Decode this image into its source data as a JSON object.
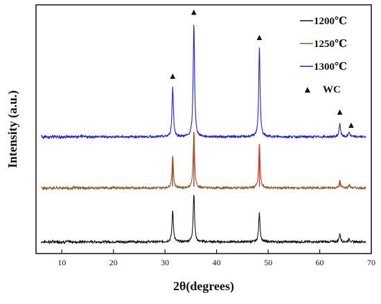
{
  "chart_data": {
    "type": "line",
    "title": "",
    "xlabel": "2θ(degrees)",
    "ylabel": "Intensity (a.u.)",
    "xlim": [
      5,
      70
    ],
    "x_ticks": [
      10,
      20,
      30,
      40,
      50,
      60,
      70
    ],
    "x_tick_labels": [
      "10",
      "20",
      "30",
      "40",
      "50",
      "60",
      "70"
    ],
    "y_ticks_shown": false,
    "grid": false,
    "legend_position": "top-right",
    "series": [
      {
        "name": "1200℃",
        "color": "#111111",
        "baseline": 0,
        "peaks": [
          {
            "x": 31.5,
            "height": 0.5
          },
          {
            "x": 35.6,
            "height": 0.78
          },
          {
            "x": 48.3,
            "height": 0.46
          },
          {
            "x": 63.9,
            "height": 0.13
          },
          {
            "x": 65.7,
            "height": 0.04
          }
        ]
      },
      {
        "name": "1250℃",
        "color": "#8B5A2B",
        "peak_color": "#E03030",
        "baseline": 1,
        "peaks": [
          {
            "x": 31.5,
            "height": 0.52
          },
          {
            "x": 35.6,
            "height": 0.92
          },
          {
            "x": 48.3,
            "height": 0.72
          },
          {
            "x": 63.9,
            "height": 0.12
          },
          {
            "x": 65.7,
            "height": 0.05
          }
        ]
      },
      {
        "name": "1300℃",
        "color": "#2020CC",
        "baseline": 2,
        "peaks": [
          {
            "x": 31.5,
            "height": 0.8
          },
          {
            "x": 35.6,
            "height": 1.83
          },
          {
            "x": 48.3,
            "height": 1.42
          },
          {
            "x": 63.9,
            "height": 0.22
          },
          {
            "x": 65.7,
            "height": 0.08
          }
        ]
      }
    ],
    "markers": {
      "label": "WC",
      "symbol": "▲",
      "x": [
        31.5,
        35.6,
        48.3,
        63.9,
        65.7
      ]
    }
  }
}
